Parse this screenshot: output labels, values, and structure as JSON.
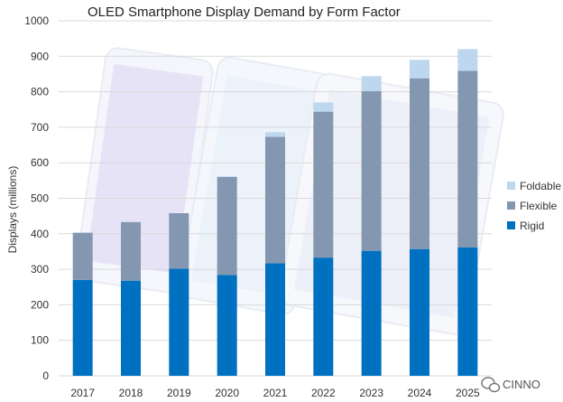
{
  "chart_data": {
    "type": "bar",
    "stacked": true,
    "title": "OLED Smartphone Display Demand by Form Factor",
    "ylabel": "Displays (millions)",
    "xlabel": "",
    "categories": [
      "2017",
      "2018",
      "2019",
      "2020",
      "2021",
      "2022",
      "2023",
      "2024",
      "2025"
    ],
    "series": [
      {
        "name": "Rigid",
        "color": "#0070c0",
        "values": [
          270,
          268,
          302,
          284,
          317,
          333,
          352,
          357,
          362
        ]
      },
      {
        "name": "Flexible",
        "color": "#8497b0",
        "values": [
          133,
          165,
          156,
          276,
          356,
          411,
          450,
          481,
          497
        ]
      },
      {
        "name": "Foldable",
        "color": "#bdd7ee",
        "values": [
          0,
          0,
          0,
          2,
          13,
          26,
          42,
          52,
          61
        ]
      }
    ],
    "ylim": [
      0,
      1000
    ],
    "yticks": [
      0,
      100,
      200,
      300,
      400,
      500,
      600,
      700,
      800,
      900,
      1000
    ],
    "grid": true,
    "legend_position": "right",
    "legend_order": [
      "Foldable",
      "Flexible",
      "Rigid"
    ],
    "gridline_color": "#d9d9d9"
  },
  "watermark": {
    "text": "CINNO",
    "icon": "wechat-icon"
  }
}
